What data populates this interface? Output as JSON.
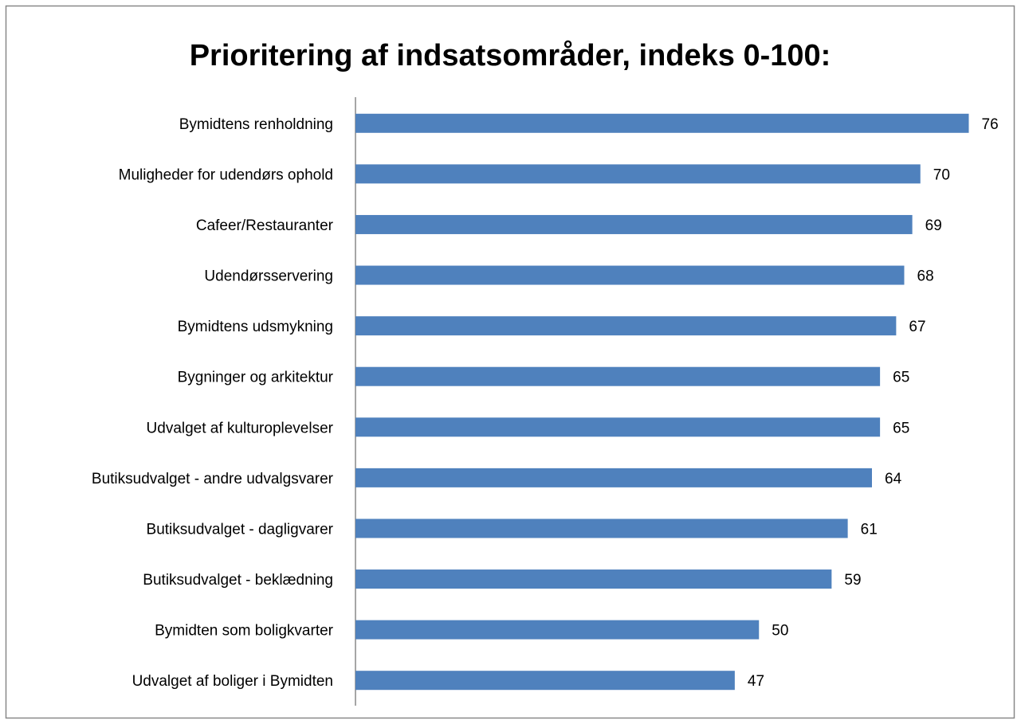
{
  "chart_data": {
    "type": "bar",
    "orientation": "horizontal",
    "title": "Prioritering af indsatsområder, indeks 0-100:",
    "categories": [
      "Bymidtens renholdning",
      "Muligheder for udendørs ophold",
      "Cafeer/Restauranter",
      "Udendørsservering",
      "Bymidtens udsmykning",
      "Bygninger og arkitektur",
      "Udvalget af kulturoplevelser",
      "Butiksudvalget - andre udvalgsvarer",
      "Butiksudvalget - dagligvarer",
      "Butiksudvalget - beklædning",
      "Bymidten som boligkvarter",
      "Udvalget af boliger i Bymidten"
    ],
    "values": [
      76,
      70,
      69,
      68,
      67,
      65,
      65,
      64,
      61,
      59,
      50,
      47
    ],
    "color": "#4f81bd",
    "xlim": [
      0,
      80
    ]
  }
}
